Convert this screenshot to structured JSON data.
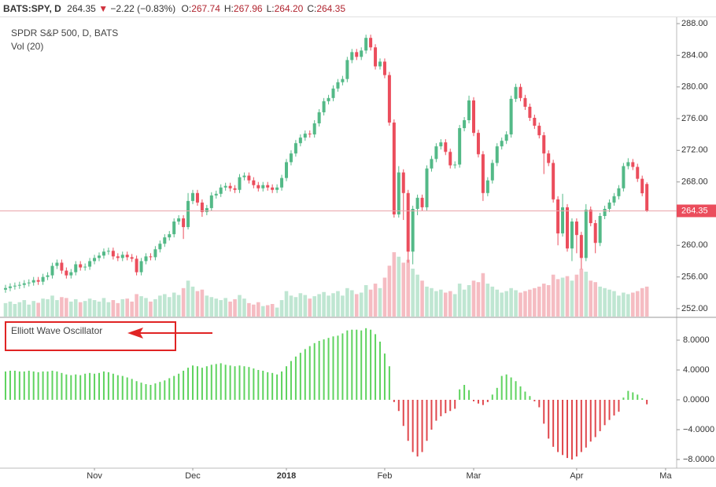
{
  "header": {
    "symbol": "BATS:SPY, D",
    "last": 264.35,
    "change": {
      "value": -2.22,
      "label": "−2.22"
    },
    "change_pct": {
      "value": -0.83,
      "label": "(−0.83%)"
    },
    "ohlc": [
      {
        "name": "O:",
        "value": 267.74
      },
      {
        "name": "H:",
        "value": 267.96
      },
      {
        "name": "L:",
        "value": 264.2,
        "label": "264.20"
      },
      {
        "name": "C:",
        "value": 264.35
      }
    ]
  },
  "chart_data": {
    "type": "candlestick",
    "title": "SPDR S&P 500, D, BATS",
    "subtitle": "Vol (20)",
    "up_color": "#53b987",
    "down_color": "#eb4d5c",
    "volume_up_color": "#bfe6d2",
    "volume_down_color": "#f5bcc2",
    "categories": [
      null,
      null,
      null,
      null,
      null,
      null,
      null,
      null,
      null,
      null,
      null,
      null,
      null,
      null,
      null,
      null,
      null,
      null,
      null,
      "Nov",
      null,
      null,
      null,
      null,
      null,
      null,
      null,
      null,
      null,
      null,
      null,
      null,
      null,
      null,
      null,
      null,
      null,
      null,
      null,
      null,
      "Dec",
      null,
      null,
      null,
      null,
      null,
      null,
      null,
      null,
      null,
      null,
      null,
      null,
      null,
      null,
      null,
      null,
      null,
      null,
      null,
      "2018",
      null,
      null,
      null,
      null,
      null,
      null,
      null,
      null,
      null,
      null,
      null,
      null,
      null,
      null,
      null,
      null,
      null,
      null,
      null,
      null,
      "Feb",
      null,
      null,
      null,
      null,
      null,
      null,
      null,
      null,
      null,
      null,
      null,
      null,
      null,
      null,
      null,
      null,
      null,
      null,
      "Mar",
      null,
      null,
      null,
      null,
      null,
      null,
      null,
      null,
      null,
      null,
      null,
      null,
      null,
      null,
      null,
      null,
      null,
      null,
      null,
      null,
      null,
      "Apr",
      null,
      null,
      null,
      null,
      null,
      null,
      null,
      null,
      null,
      null,
      null,
      null,
      null,
      null,
      null,
      null,
      null,
      null,
      "Ma"
    ],
    "open": [
      254.4,
      254.6,
      254.8,
      254.9,
      255.0,
      255.2,
      255.3,
      255.6,
      255.4,
      256.0,
      256.2,
      257.4,
      257.8,
      256.8,
      256.2,
      256.6,
      257.6,
      257.2,
      257.3,
      258.0,
      258.4,
      258.7,
      259.2,
      259.3,
      258.6,
      258.4,
      258.8,
      258.5,
      258.3,
      256.6,
      258.0,
      258.6,
      258.5,
      259.5,
      260.2,
      261.0,
      261.4,
      263.0,
      263.4,
      262.3,
      265.6,
      266.6,
      265.4,
      264.2,
      264.7,
      266.3,
      266.5,
      267.3,
      267.5,
      267.2,
      267.0,
      268.6,
      268.8,
      268.2,
      267.6,
      267.2,
      267.6,
      267.3,
      267.0,
      267.3,
      268.5,
      270.5,
      271.6,
      272.9,
      273.6,
      274.1,
      274.0,
      275.4,
      276.8,
      278.2,
      278.6,
      279.8,
      280.6,
      281.0,
      283.4,
      284.4,
      283.8,
      284.6,
      286.2,
      285.0,
      282.6,
      283.2,
      281.5,
      275.5,
      263.9,
      269.2,
      266.6,
      259.2,
      264.6,
      266.0,
      264.8,
      269.7,
      270.9,
      272.5,
      273.0,
      271.8,
      270.1,
      270.2,
      274.8,
      275.8,
      278.3,
      274.2,
      271.5,
      266.6,
      268.2,
      270.4,
      272.5,
      273.2,
      274.0,
      278.5,
      280.0,
      278.6,
      277.5,
      276.1,
      275.1,
      273.9,
      271.6,
      270.4,
      265.8,
      261.5,
      264.8,
      259.6,
      263.0,
      261.3,
      258.4,
      264.5,
      262.8,
      260.3,
      263.7,
      264.6,
      265.4,
      266.2,
      267.2,
      270.0,
      270.5,
      269.9,
      268.4,
      267.74,
      null,
      null,
      null,
      null
    ],
    "high": [
      255.0,
      255.2,
      255.3,
      255.4,
      255.6,
      255.7,
      256.0,
      256.0,
      256.4,
      256.6,
      257.8,
      258.2,
      258.2,
      257.2,
      257.0,
      258.0,
      258.0,
      257.7,
      258.4,
      258.8,
      259.1,
      259.6,
      259.7,
      259.7,
      259.0,
      259.2,
      259.2,
      258.9,
      258.7,
      258.4,
      259.0,
      259.0,
      259.9,
      260.6,
      261.4,
      261.8,
      263.4,
      263.8,
      263.8,
      266.6,
      267.0,
      267.0,
      265.8,
      265.1,
      266.7,
      266.9,
      267.7,
      267.9,
      267.9,
      267.6,
      269.0,
      269.2,
      269.2,
      268.6,
      268.0,
      268.0,
      268.0,
      267.7,
      267.7,
      268.9,
      270.9,
      272.0,
      273.3,
      274.0,
      274.5,
      274.5,
      275.8,
      277.2,
      278.6,
      279.0,
      280.2,
      281.0,
      281.4,
      283.8,
      284.8,
      284.8,
      285.0,
      286.6,
      286.6,
      285.4,
      283.6,
      283.6,
      281.9,
      275.9,
      270.0,
      269.6,
      267.0,
      265.0,
      266.4,
      266.4,
      270.1,
      271.3,
      272.9,
      273.4,
      273.4,
      272.2,
      270.6,
      275.2,
      276.2,
      278.9,
      278.7,
      274.6,
      271.9,
      268.6,
      270.8,
      272.9,
      273.6,
      274.4,
      278.9,
      280.4,
      280.4,
      279.0,
      277.9,
      276.5,
      275.5,
      274.3,
      272.0,
      270.8,
      266.2,
      266.5,
      265.2,
      263.4,
      263.4,
      261.7,
      265.2,
      264.9,
      263.2,
      264.1,
      265.0,
      265.8,
      266.6,
      267.6,
      270.4,
      271.0,
      270.9,
      270.3,
      268.8,
      267.96,
      null,
      null,
      null,
      null
    ],
    "low": [
      254.0,
      254.2,
      254.4,
      254.5,
      254.6,
      254.8,
      254.9,
      255.0,
      255.0,
      255.6,
      255.8,
      257.0,
      256.4,
      255.8,
      255.8,
      256.2,
      256.8,
      256.8,
      256.9,
      257.6,
      258.0,
      258.3,
      258.8,
      258.2,
      258.0,
      258.0,
      258.1,
      257.9,
      256.2,
      256.2,
      257.6,
      258.1,
      258.1,
      259.1,
      259.8,
      260.6,
      261.0,
      262.6,
      260.8,
      262.0,
      265.2,
      265.0,
      263.6,
      263.8,
      264.3,
      265.9,
      266.1,
      266.9,
      266.8,
      266.6,
      266.6,
      268.2,
      267.8,
      267.2,
      266.8,
      266.8,
      266.9,
      266.6,
      266.6,
      266.9,
      268.1,
      270.1,
      271.2,
      272.5,
      273.2,
      273.6,
      273.6,
      275.0,
      276.4,
      277.8,
      278.2,
      279.4,
      280.2,
      280.6,
      283.0,
      283.4,
      283.4,
      284.2,
      284.6,
      282.2,
      282.2,
      281.1,
      275.1,
      263.5,
      263.5,
      263.2,
      257.8,
      257.6,
      263.8,
      264.4,
      264.4,
      269.3,
      270.5,
      272.1,
      271.4,
      269.7,
      269.7,
      269.8,
      274.4,
      275.4,
      273.8,
      271.1,
      265.6,
      266.2,
      267.8,
      270.0,
      272.1,
      272.8,
      273.6,
      278.1,
      278.2,
      277.1,
      275.7,
      274.7,
      273.5,
      269.0,
      270.0,
      265.4,
      260.0,
      261.1,
      259.2,
      258.0,
      259.0,
      257.0,
      258.0,
      262.4,
      259.0,
      259.9,
      263.3,
      264.2,
      265.0,
      265.8,
      266.8,
      269.6,
      269.5,
      268.0,
      266.2,
      264.2,
      null,
      null,
      null,
      null
    ],
    "close": [
      254.6,
      254.8,
      254.9,
      255.0,
      255.2,
      255.3,
      255.6,
      255.4,
      256.0,
      256.2,
      257.4,
      257.8,
      256.8,
      256.2,
      256.6,
      257.6,
      257.2,
      257.3,
      258.0,
      258.4,
      258.7,
      259.2,
      259.3,
      258.6,
      258.4,
      258.8,
      258.5,
      258.3,
      256.6,
      258.0,
      258.6,
      258.5,
      259.5,
      260.2,
      261.0,
      261.4,
      263.0,
      263.4,
      262.3,
      265.6,
      266.6,
      265.4,
      264.2,
      264.7,
      266.3,
      266.5,
      267.3,
      267.5,
      267.2,
      267.0,
      268.6,
      268.8,
      268.2,
      267.6,
      267.2,
      267.6,
      267.3,
      267.0,
      267.3,
      268.5,
      270.5,
      271.6,
      272.9,
      273.6,
      274.1,
      274.0,
      275.4,
      276.8,
      278.2,
      278.6,
      279.8,
      280.6,
      281.0,
      283.4,
      284.4,
      283.8,
      284.6,
      286.2,
      285.0,
      282.6,
      283.2,
      281.5,
      275.5,
      263.9,
      269.2,
      266.6,
      259.2,
      264.6,
      266.0,
      264.8,
      269.7,
      270.9,
      272.5,
      273.0,
      271.8,
      270.1,
      270.2,
      274.8,
      275.8,
      278.3,
      274.2,
      271.5,
      266.6,
      268.2,
      270.4,
      272.5,
      273.2,
      274.0,
      278.5,
      280.0,
      278.6,
      277.5,
      276.1,
      275.1,
      273.9,
      271.6,
      270.4,
      265.8,
      261.5,
      264.8,
      259.6,
      263.0,
      261.3,
      258.4,
      264.5,
      262.8,
      260.3,
      263.7,
      264.6,
      265.4,
      266.2,
      267.2,
      270.0,
      270.5,
      269.9,
      268.4,
      266.57,
      264.35,
      null,
      null,
      null,
      null
    ],
    "volume": [
      45,
      50,
      42,
      48,
      55,
      40,
      52,
      46,
      60,
      58,
      70,
      55,
      65,
      62,
      50,
      58,
      48,
      52,
      60,
      55,
      50,
      62,
      48,
      55,
      45,
      58,
      60,
      50,
      75,
      68,
      62,
      50,
      58,
      70,
      75,
      65,
      80,
      72,
      95,
      120,
      100,
      85,
      90,
      70,
      65,
      60,
      55,
      62,
      50,
      58,
      72,
      60,
      45,
      40,
      48,
      35,
      38,
      42,
      30,
      55,
      85,
      70,
      65,
      78,
      72,
      60,
      68,
      75,
      82,
      70,
      78,
      85,
      70,
      95,
      88,
      75,
      80,
      105,
      90,
      110,
      95,
      130,
      170,
      215,
      200,
      180,
      190,
      160,
      140,
      120,
      100,
      95,
      85,
      90,
      80,
      85,
      75,
      110,
      90,
      105,
      120,
      115,
      145,
      110,
      100,
      90,
      80,
      85,
      95,
      88,
      80,
      85,
      90,
      95,
      100,
      110,
      105,
      140,
      125,
      130,
      135,
      120,
      140,
      160,
      150,
      120,
      115,
      100,
      95,
      90,
      85,
      70,
      80,
      75,
      80,
      85,
      95,
      100,
      null,
      null,
      null,
      null
    ],
    "volume_ylim": [
      0,
      1000
    ],
    "ylim": [
      251.0,
      288.8
    ],
    "yticks": [
      {
        "value": 252,
        "label": "252.00"
      },
      {
        "value": 256,
        "label": "256.00"
      },
      {
        "value": 260,
        "label": "260.00"
      },
      {
        "value": 264,
        "label": "264.00"
      },
      {
        "value": 268,
        "label": "268.00"
      },
      {
        "value": 272,
        "label": "272.00"
      },
      {
        "value": 276,
        "label": "276.00"
      },
      {
        "value": 280,
        "label": "280.00"
      },
      {
        "value": 284,
        "label": "284.00"
      },
      {
        "value": 288,
        "label": "288.00"
      }
    ],
    "oscillator": {
      "title": "Elliott Wave Oscillator",
      "up_color": "#5fd35f",
      "down_color": "#e0474c",
      "values": [
        3.8,
        3.9,
        3.9,
        3.8,
        3.8,
        3.9,
        3.8,
        3.7,
        3.8,
        3.8,
        3.9,
        3.8,
        3.6,
        3.4,
        3.3,
        3.4,
        3.3,
        3.5,
        3.6,
        3.5,
        3.6,
        3.8,
        3.7,
        3.5,
        3.3,
        3.2,
        3.0,
        2.8,
        2.5,
        2.3,
        2.1,
        2.0,
        2.2,
        2.4,
        2.6,
        2.9,
        3.2,
        3.5,
        3.9,
        4.3,
        4.6,
        4.5,
        4.3,
        4.5,
        4.7,
        4.8,
        4.9,
        4.7,
        4.6,
        4.5,
        4.6,
        4.5,
        4.4,
        4.2,
        4.0,
        3.9,
        3.7,
        3.6,
        3.4,
        3.8,
        4.5,
        5.2,
        5.8,
        6.3,
        6.8,
        7.2,
        7.6,
        7.9,
        8.1,
        8.3,
        8.5,
        8.6,
        8.9,
        9.3,
        9.4,
        9.4,
        9.3,
        9.6,
        9.4,
        8.8,
        7.8,
        6.2,
        4.5,
        -0.3,
        -1.5,
        -3.5,
        -5.5,
        -7.0,
        -7.6,
        -7.0,
        -5.5,
        -4.0,
        -2.8,
        -2.2,
        -1.8,
        -1.5,
        -1.2,
        1.4,
        2.0,
        1.3,
        -0.2,
        -0.5,
        -0.7,
        -0.3,
        0.7,
        1.6,
        3.2,
        3.4,
        3.0,
        2.5,
        1.8,
        1.1,
        0.5,
        -0.2,
        -1.0,
        -3.2,
        -5.2,
        -6.3,
        -7.0,
        -7.4,
        -7.8,
        -8.0,
        -7.6,
        -7.0,
        -6.4,
        -5.6,
        -5.0,
        -4.2,
        -3.4,
        -2.7,
        -2.1,
        -1.6,
        0.3,
        1.2,
        1.0,
        0.7,
        0.2,
        -0.6,
        null,
        null,
        null,
        null
      ],
      "ylim": [
        -9.16,
        10.95
      ],
      "yticks": [
        {
          "value": 8,
          "label": "8.0000"
        },
        {
          "value": 4,
          "label": "4.0000"
        },
        {
          "value": 0,
          "label": "0.0000"
        },
        {
          "value": -4,
          "label": "−4.0000"
        },
        {
          "value": -8,
          "label": "−8.0000"
        }
      ]
    }
  }
}
